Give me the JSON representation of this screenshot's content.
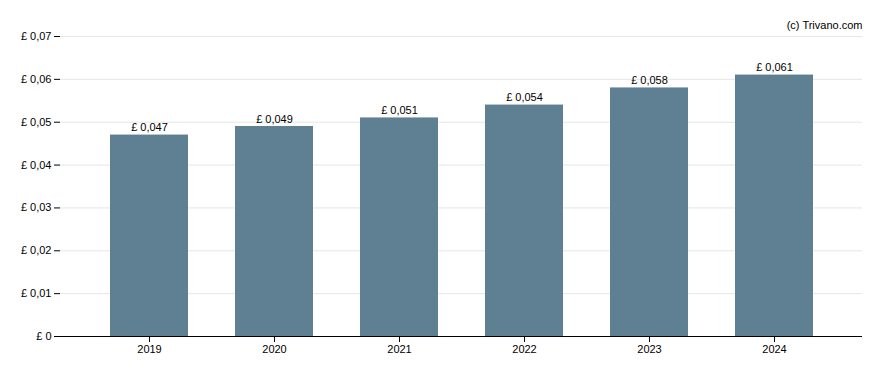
{
  "chart_data": {
    "type": "bar",
    "categories": [
      "2019",
      "2020",
      "2021",
      "2022",
      "2023",
      "2024"
    ],
    "values": [
      0.047,
      0.049,
      0.051,
      0.054,
      0.058,
      0.061
    ],
    "value_labels": [
      "£ 0,047",
      "£ 0,049",
      "£ 0,051",
      "£ 0,054",
      "£ 0,058",
      "£ 0,061"
    ],
    "data_labels": true,
    "color": "#5f7f93",
    "ylim": [
      0,
      0.07
    ],
    "yticks": [
      {
        "value": 0,
        "label": "£ 0"
      },
      {
        "value": 0.01,
        "label": "£ 0,01"
      },
      {
        "value": 0.02,
        "label": "£ 0,02"
      },
      {
        "value": 0.03,
        "label": "£ 0,03"
      },
      {
        "value": 0.04,
        "label": "£ 0,04"
      },
      {
        "value": 0.05,
        "label": "£ 0,05"
      },
      {
        "value": 0.06,
        "label": "£ 0,06"
      },
      {
        "value": 0.07,
        "label": "£ 0,07"
      }
    ],
    "grid": true,
    "annotations": [
      "(c) Trivano.com"
    ]
  }
}
